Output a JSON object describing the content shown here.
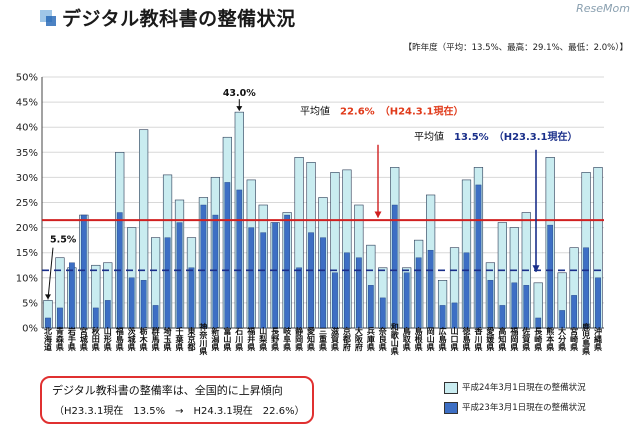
{
  "page": {
    "title": "デジタル教科書の整備状況",
    "logo": "ReseMom",
    "subtitle": "【昨年度（平均：13.5%、最高：29.1%、最低：2.0%）】"
  },
  "note": {
    "line1": "デジタル教科書の整備率は、全国的に上昇傾向",
    "line2": "（H23.3.1現在　13.5%　→　H24.3.1現在　22.6%）"
  },
  "legend": {
    "items": [
      {
        "label": "平成24年3月1日現在の整備状況",
        "color": "#c9ecf0"
      },
      {
        "label": "平成23年3月1日現在の整備状況",
        "color": "#3d6fc4"
      }
    ]
  },
  "chart_data": {
    "type": "bar",
    "ylim": [
      0,
      50
    ],
    "yticks": [
      "0%",
      "5%",
      "10%",
      "15%",
      "20%",
      "25%",
      "30%",
      "35%",
      "40%",
      "45%",
      "50%"
    ],
    "categories": [
      "北海道",
      "青森県",
      "岩手県",
      "宮城県",
      "秋田県",
      "山形県",
      "福島県",
      "茨城県",
      "栃木県",
      "群馬県",
      "埼玉県",
      "千葉県",
      "東京都",
      "神奈川県",
      "新潟県",
      "富山県",
      "石川県",
      "福井県",
      "山梨県",
      "長野県",
      "岐阜県",
      "静岡県",
      "愛知県",
      "三重県",
      "滋賀県",
      "京都府",
      "大阪府",
      "兵庫県",
      "奈良県",
      "和歌山県",
      "鳥取県",
      "島根県",
      "岡山県",
      "広島県",
      "山口県",
      "徳島県",
      "香川県",
      "愛媛県",
      "高知県",
      "福岡県",
      "佐賀県",
      "長崎県",
      "熊本県",
      "大分県",
      "宮崎県",
      "鹿児島県",
      "沖縄県"
    ],
    "series": [
      {
        "name": "平成24年3月1日現在の整備状況",
        "values": [
          5.5,
          14.0,
          12.0,
          22.5,
          12.5,
          13.0,
          35.0,
          20.0,
          39.5,
          18.0,
          30.5,
          25.5,
          18.0,
          26.0,
          30.0,
          38.0,
          43.0,
          29.5,
          24.5,
          21.0,
          23.0,
          34.0,
          33.0,
          26.0,
          31.0,
          31.5,
          24.5,
          16.5,
          12.0,
          32.0,
          12.0,
          17.5,
          26.5,
          9.5,
          16.0,
          29.5,
          32.0,
          13.0,
          21.0,
          20.0,
          23.0,
          9.0,
          34.0,
          11.0,
          16.0,
          31.0,
          32.0
        ]
      },
      {
        "name": "平成23年3月1日現在の整備状況",
        "values": [
          2.0,
          4.0,
          13.0,
          22.5,
          4.0,
          5.5,
          23.0,
          10.0,
          9.5,
          4.5,
          18.0,
          21.0,
          12.0,
          24.5,
          22.5,
          29.0,
          27.5,
          20.0,
          19.0,
          21.0,
          22.5,
          12.0,
          19.0,
          18.0,
          11.0,
          15.0,
          14.0,
          8.5,
          6.0,
          24.5,
          11.0,
          14.0,
          15.5,
          4.5,
          5.0,
          15.0,
          28.5,
          9.5,
          4.5,
          9.0,
          8.5,
          2.0,
          20.5,
          3.5,
          6.5,
          16.0,
          10.0
        ]
      }
    ],
    "annotations": [
      {
        "text": "43.0%",
        "category": "石川県"
      },
      {
        "text": "5.5%",
        "category": "北海道"
      },
      {
        "text": "平均値",
        "value": "22.6%",
        "note": "（H24.3.1現在）"
      },
      {
        "text": "平均値",
        "value": "13.5%",
        "note": "（H23.3.1現在）"
      }
    ],
    "reference_lines": [
      {
        "value": 21.5,
        "style": "solid",
        "color": "#d02020"
      },
      {
        "value": 11.5,
        "style": "dashed",
        "color": "#1a2f8a"
      }
    ]
  }
}
